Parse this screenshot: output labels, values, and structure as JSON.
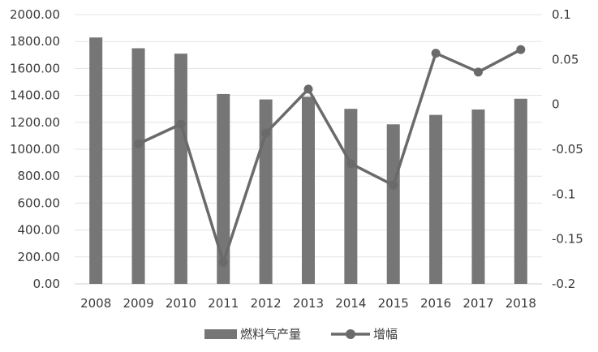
{
  "chart_data": {
    "type": "bar",
    "categories": [
      "2008",
      "2009",
      "2010",
      "2011",
      "2012",
      "2013",
      "2014",
      "2015",
      "2016",
      "2017",
      "2018"
    ],
    "series": [
      {
        "name": "燃料气产量",
        "type": "bar",
        "axis": "left",
        "color": "#767676",
        "values": [
          1830,
          1750,
          1710,
          1410,
          1370,
          1390,
          1300,
          1185,
          1255,
          1295,
          1375
        ]
      },
      {
        "name": "增幅",
        "type": "line",
        "axis": "right",
        "color": "#6a6a6a",
        "values": [
          null,
          -0.044,
          -0.022,
          -0.176,
          -0.032,
          0.017,
          -0.066,
          -0.09,
          0.057,
          0.036,
          0.061
        ]
      }
    ],
    "y_left": {
      "ylim": [
        0,
        2000
      ],
      "ticks": [
        0,
        200,
        400,
        600,
        800,
        1000,
        1200,
        1400,
        1600,
        1800,
        2000
      ],
      "tick_labels": [
        "0.00",
        "200.00",
        "400.00",
        "600.00",
        "800.00",
        "1000.00",
        "1200.00",
        "1400.00",
        "1600.00",
        "1800.00",
        "2000.00"
      ]
    },
    "y_right": {
      "ylim": [
        -0.2,
        0.1
      ],
      "ticks": [
        -0.2,
        -0.15,
        -0.1,
        -0.05,
        0,
        0.05,
        0.1
      ],
      "tick_labels": [
        "-0.2",
        "-0.15",
        "-0.1",
        "-0.05",
        "0",
        "0.05",
        "0.1"
      ]
    },
    "grid": true,
    "legend": "bottom",
    "title": "",
    "xlabel": "",
    "ylabel": ""
  }
}
